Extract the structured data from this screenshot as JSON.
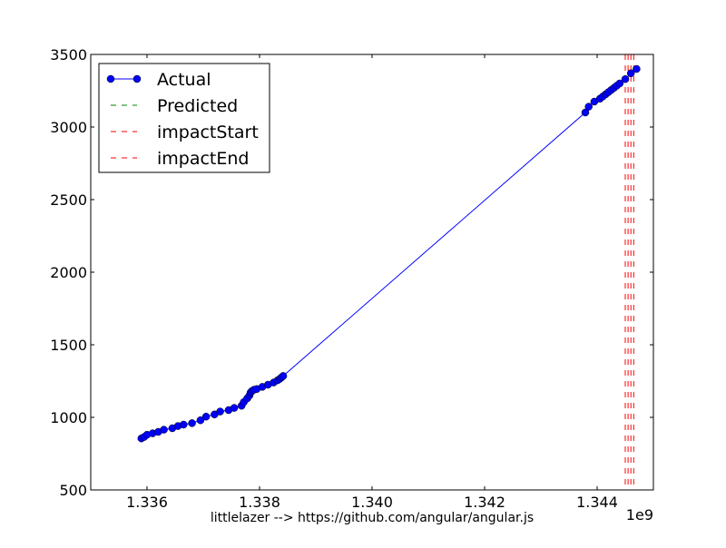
{
  "chart_data": {
    "type": "line",
    "title": "",
    "xlabel": "littlelazer --> https://github.com/angular/angular.js",
    "ylabel": "",
    "x_offset_label": "1e9",
    "x_scale": 1000000000,
    "xlim": [
      1.335,
      1.345
    ],
    "ylim": [
      500,
      3500
    ],
    "x_ticks": [
      {
        "value": 1.336,
        "label": "1.336"
      },
      {
        "value": 1.338,
        "label": "1.338"
      },
      {
        "value": 1.34,
        "label": "1.340"
      },
      {
        "value": 1.342,
        "label": "1.342"
      },
      {
        "value": 1.344,
        "label": "1.344"
      }
    ],
    "y_ticks": [
      {
        "value": 500,
        "label": "500"
      },
      {
        "value": 1000,
        "label": "1000"
      },
      {
        "value": 1500,
        "label": "1500"
      },
      {
        "value": 2000,
        "label": "2000"
      },
      {
        "value": 2500,
        "label": "2500"
      },
      {
        "value": 3000,
        "label": "3000"
      },
      {
        "value": 3500,
        "label": "3500"
      }
    ],
    "grid": false,
    "legend_position": "top-left",
    "series": [
      {
        "name": "Actual",
        "style": "solid-with-markers",
        "color": "#0000ff",
        "marker_color": "#0000ff",
        "x": [
          1.3359,
          1.33595,
          1.336,
          1.3361,
          1.3362,
          1.3363,
          1.33645,
          1.33655,
          1.33665,
          1.3368,
          1.33695,
          1.33705,
          1.3372,
          1.3373,
          1.33745,
          1.33755,
          1.33768,
          1.33772,
          1.33778,
          1.33782,
          1.33784,
          1.33786,
          1.3379,
          1.33795,
          1.33805,
          1.33815,
          1.33825,
          1.33832,
          1.33836,
          1.33839,
          1.33842,
          1.34379,
          1.34385,
          1.34395,
          1.34405,
          1.3441,
          1.34415,
          1.3442,
          1.34425,
          1.3443,
          1.34435,
          1.3444,
          1.3445,
          1.3446,
          1.3447
        ],
        "y": [
          855,
          865,
          880,
          890,
          900,
          915,
          925,
          940,
          950,
          960,
          980,
          1005,
          1020,
          1040,
          1050,
          1065,
          1080,
          1105,
          1130,
          1150,
          1170,
          1180,
          1190,
          1195,
          1210,
          1225,
          1240,
          1255,
          1265,
          1275,
          1285,
          3100,
          3140,
          3175,
          3195,
          3210,
          3225,
          3240,
          3255,
          3270,
          3285,
          3300,
          3330,
          3370,
          3400
        ]
      },
      {
        "name": "Predicted",
        "style": "dashed",
        "color": "#008000",
        "x": [],
        "y": []
      },
      {
        "name": "impactStart",
        "style": "dashed-vertical",
        "color": "#ff0000",
        "x_values": [
          1.3445,
          1.3446
        ]
      },
      {
        "name": "impactEnd",
        "style": "dashed-vertical",
        "color": "#ff0000",
        "x_values": [
          1.34455,
          1.34465
        ]
      }
    ]
  }
}
